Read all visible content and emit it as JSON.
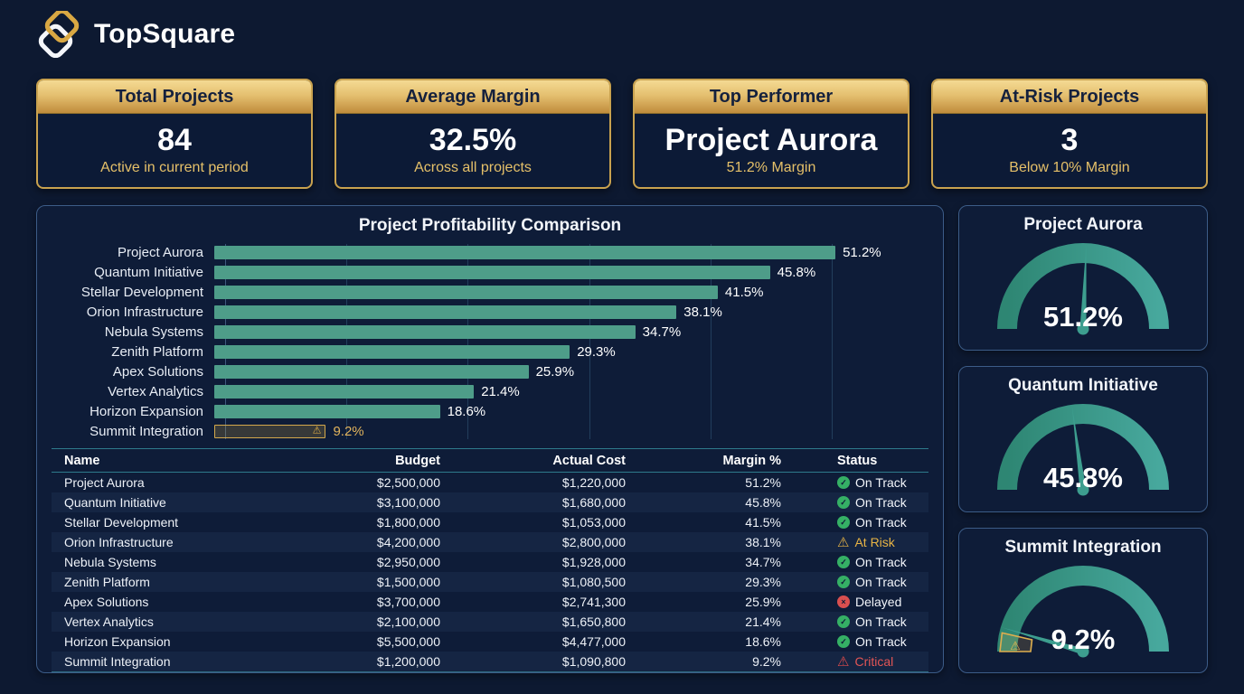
{
  "brand": {
    "name": "TopSquare",
    "logo": "interlocked-diamonds"
  },
  "colors": {
    "background": "#0d1931",
    "panel": "#0e1c38",
    "panel_border": "#3c5c88",
    "gold": "#c9a24f",
    "gold_text": "#e5c069",
    "bar_teal": "#4e9d89",
    "gauge_arc_start": "#2e8673",
    "gauge_arc_end": "#47a89d",
    "status_green": "#35b065",
    "status_amber": "#e8b445",
    "status_red": "#d94f4f"
  },
  "kpis": [
    {
      "title": "Total Projects",
      "value": "84",
      "subtitle": "Active in current period"
    },
    {
      "title": "Average Margin",
      "value": "32.5%",
      "subtitle": "Across all projects"
    },
    {
      "title": "Top Performer",
      "value": "Project Aurora",
      "subtitle": "51.2% Margin"
    },
    {
      "title": "At-Risk Projects",
      "value": "3",
      "subtitle": "Below 10% Margin"
    }
  ],
  "chart_data": [
    {
      "type": "bar",
      "orientation": "horizontal",
      "title": "Project Profitability Comparison",
      "categories": [
        "Project Aurora",
        "Quantum Initiative",
        "Stellar Development",
        "Orion Infrastructure",
        "Nebula Systems",
        "Zenith Platform",
        "Apex Solutions",
        "Vertex Analytics",
        "Horizon Expansion",
        "Summit Integration"
      ],
      "values": [
        51.2,
        45.8,
        41.5,
        38.1,
        34.7,
        29.3,
        25.9,
        21.4,
        18.6,
        9.2
      ],
      "unit": "%",
      "xlim": [
        0,
        55
      ],
      "gridline_step": 10,
      "grid": true,
      "legend": false,
      "highlight_category": "Summit Integration",
      "highlight_reason": "below 10% margin warning"
    },
    {
      "type": "table",
      "columns": [
        "Name",
        "Budget",
        "Actual Cost",
        "Margin %",
        "Status"
      ],
      "rows": [
        {
          "name": "Project Aurora",
          "budget": "$2,500,000",
          "actual_cost": "$1,220,000",
          "margin": "51.2%",
          "status": "On Track",
          "status_type": "on-track"
        },
        {
          "name": "Quantum Initiative",
          "budget": "$3,100,000",
          "actual_cost": "$1,680,000",
          "margin": "45.8%",
          "status": "On Track",
          "status_type": "on-track"
        },
        {
          "name": "Stellar Development",
          "budget": "$1,800,000",
          "actual_cost": "$1,053,000",
          "margin": "41.5%",
          "status": "On Track",
          "status_type": "on-track"
        },
        {
          "name": "Orion Infrastructure",
          "budget": "$4,200,000",
          "actual_cost": "$2,800,000",
          "margin": "38.1%",
          "status": "At Risk",
          "status_type": "at-risk"
        },
        {
          "name": "Nebula Systems",
          "budget": "$2,950,000",
          "actual_cost": "$1,928,000",
          "margin": "34.7%",
          "status": "On Track",
          "status_type": "on-track"
        },
        {
          "name": "Zenith Platform",
          "budget": "$1,500,000",
          "actual_cost": "$1,080,500",
          "margin": "29.3%",
          "status": "On Track",
          "status_type": "on-track"
        },
        {
          "name": "Apex Solutions",
          "budget": "$3,700,000",
          "actual_cost": "$2,741,300",
          "margin": "25.9%",
          "status": "Delayed",
          "status_type": "delayed"
        },
        {
          "name": "Vertex Analytics",
          "budget": "$2,100,000",
          "actual_cost": "$1,650,800",
          "margin": "21.4%",
          "status": "On Track",
          "status_type": "on-track"
        },
        {
          "name": "Horizon Expansion",
          "budget": "$5,500,000",
          "actual_cost": "$4,477,000",
          "margin": "18.6%",
          "status": "On Track",
          "status_type": "on-track"
        },
        {
          "name": "Summit Integration",
          "budget": "$1,200,000",
          "actual_cost": "$1,090,800",
          "margin": "9.2%",
          "status": "Critical",
          "status_type": "critical"
        }
      ]
    },
    {
      "type": "gauge",
      "gauges": [
        {
          "title": "Project Aurora",
          "value": 51.2,
          "label": "51.2%",
          "range": [
            0,
            100
          ],
          "warning": false
        },
        {
          "title": "Quantum Initiative",
          "value": 45.8,
          "label": "45.8%",
          "range": [
            0,
            100
          ],
          "warning": false
        },
        {
          "title": "Summit Integration",
          "value": 9.2,
          "label": "9.2%",
          "range": [
            0,
            100
          ],
          "warning": true
        }
      ]
    }
  ],
  "status_styles": {
    "on-track": {
      "icon": "check-circle-icon",
      "glyph": "✓",
      "shape": "circle",
      "icon_color": "#35b065",
      "text_color": "#f2f5fa"
    },
    "at-risk": {
      "icon": "warning-triangle-icon",
      "glyph": "⚠",
      "shape": "triangle",
      "icon_color": "#e8b445",
      "text_color": "#e8b445"
    },
    "delayed": {
      "icon": "x-circle-icon",
      "glyph": "×",
      "shape": "circle",
      "icon_color": "#d94f4f",
      "text_color": "#f2f5fa"
    },
    "critical": {
      "icon": "alert-triangle-icon",
      "glyph": "⚠",
      "shape": "triangle",
      "icon_color": "#e04b4b",
      "text_color": "#e25555"
    }
  }
}
